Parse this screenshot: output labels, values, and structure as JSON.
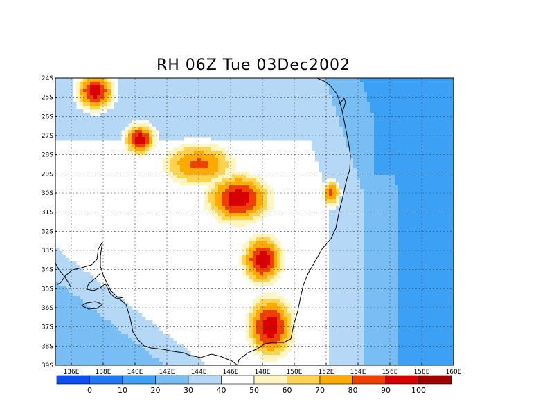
{
  "title": "RH 06Z Tue 03Dec2002",
  "lat_labels": [
    "24S",
    "25S",
    "26S",
    "27S",
    "28S",
    "29S",
    "30S",
    "31S",
    "32S",
    "33S",
    "34S",
    "35S",
    "36S",
    "37S",
    "38S",
    "39S"
  ],
  "lon_labels": [
    "136E",
    "138E",
    "140E",
    "142E",
    "144E",
    "146E",
    "148E",
    "150E",
    "152E",
    "154E",
    "156E",
    "158E",
    "160E"
  ],
  "colorbar": {
    "values": [
      "0",
      "10",
      "20",
      "30",
      "40",
      "50",
      "60",
      "70",
      "80",
      "90",
      "100"
    ],
    "colors": [
      "#0a50f5",
      "#1e78f5",
      "#3ca0f5",
      "#78bef5",
      "#b4d8f5",
      "#ffffff",
      "#fff5c0",
      "#ffd250",
      "#ffaa00",
      "#f04000",
      "#d80000",
      "#a00000"
    ]
  },
  "map_region": {
    "lon_min": 135,
    "lon_max": 160,
    "lat_min": -39,
    "lat_max": -24
  },
  "field": {
    "units": "percent",
    "centers": [
      {
        "lon": 137.5,
        "lat": -24.7,
        "rh": 95,
        "slon": 1.5,
        "slat": 1.2
      },
      {
        "lon": 140.3,
        "lat": -27.2,
        "rh": 95,
        "slon": 1.2,
        "slat": 1.0
      },
      {
        "lon": 146.5,
        "lat": -30.3,
        "rh": 96,
        "slon": 2.5,
        "slat": 1.6
      },
      {
        "lon": 148,
        "lat": -33.5,
        "rh": 95,
        "slon": 1.6,
        "slat": 1.6
      },
      {
        "lon": 148.5,
        "lat": -37.0,
        "rh": 96,
        "slon": 1.8,
        "slat": 2.0
      },
      {
        "lon": 152.3,
        "lat": -30.0,
        "rh": 82,
        "slon": 0.7,
        "slat": 0.9
      },
      {
        "lon": 144.0,
        "lat": -28.5,
        "rh": 80,
        "slon": 3.0,
        "slat": 1.5
      }
    ],
    "dry_zones": [
      {
        "name": "southwest",
        "rh": 15
      },
      {
        "name": "east",
        "rh": 18
      }
    ]
  }
}
